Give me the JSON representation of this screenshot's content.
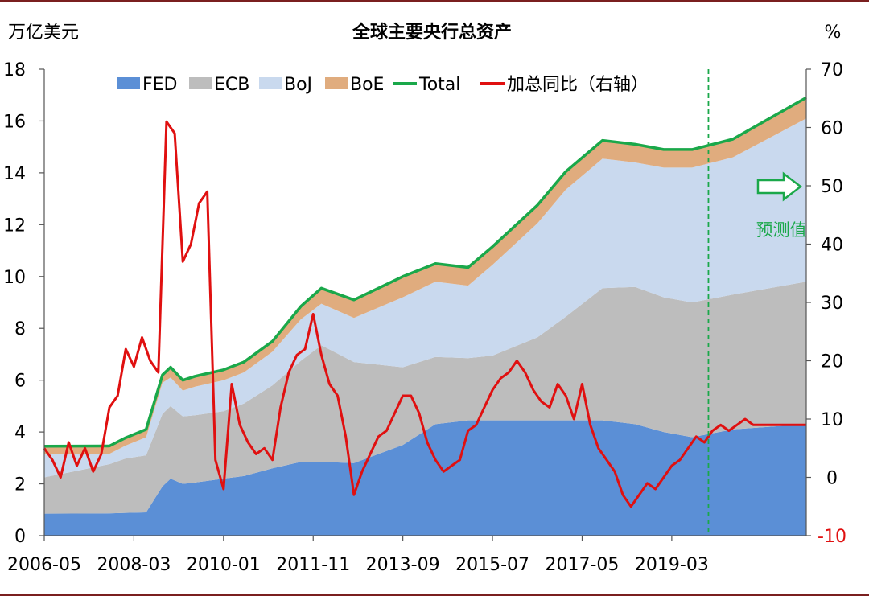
{
  "chart_data": {
    "type": "area",
    "title": "全球主要央行总资产",
    "ylabel_left": "万亿美元",
    "ylabel_right": "%",
    "ylim_left": [
      0,
      18
    ],
    "ylim_right": [
      -10,
      70
    ],
    "yticks_left": [
      "0",
      "2",
      "4",
      "6",
      "8",
      "10",
      "12",
      "14",
      "16",
      "18"
    ],
    "yticks_right": [
      "-10",
      "0",
      "10",
      "20",
      "30",
      "40",
      "50",
      "60",
      "70"
    ],
    "xticks": [
      "2006-05",
      "2008-03",
      "2010-01",
      "2011-11",
      "2013-09",
      "2015-07",
      "2017-05",
      "2019-03"
    ],
    "x_start": "2006-05",
    "x_end": "2021-12",
    "forecast_start": "2019-12",
    "forecast_label": "预测值",
    "legend": [
      "FED",
      "ECB",
      "BoJ",
      "BoE",
      "Total",
      "加总同比（右轴）"
    ],
    "colors": {
      "FED": "#5b8fd6",
      "ECB": "#bdbdbd",
      "BoJ": "#c9d9ee",
      "BoE": "#e0ac7e",
      "Total": "#1aa84a",
      "YoY": "#e01010",
      "forecast": "#1aa84a"
    },
    "x_points": [
      "2006-05",
      "2007-09",
      "2008-01",
      "2008-06",
      "2008-10",
      "2008-12",
      "2009-03",
      "2009-06",
      "2010-01",
      "2010-06",
      "2011-01",
      "2011-08",
      "2012-01",
      "2012-09",
      "2013-09",
      "2014-05",
      "2015-01",
      "2015-07",
      "2016-06",
      "2017-01",
      "2017-10",
      "2018-06",
      "2019-01",
      "2019-08",
      "2020-06",
      "2021-12"
    ],
    "series": [
      {
        "name": "FED",
        "values": [
          0.85,
          0.86,
          0.88,
          0.9,
          1.9,
          2.2,
          2.0,
          2.05,
          2.2,
          2.3,
          2.6,
          2.85,
          2.85,
          2.8,
          3.5,
          4.3,
          4.45,
          4.45,
          4.45,
          4.45,
          4.45,
          4.3,
          4.0,
          3.8,
          4.1,
          4.3
        ]
      },
      {
        "name": "ECB",
        "values": [
          1.4,
          1.9,
          2.1,
          2.2,
          2.8,
          2.8,
          2.6,
          2.6,
          2.6,
          2.8,
          3.2,
          3.9,
          4.5,
          3.9,
          3.0,
          2.6,
          2.4,
          2.5,
          3.2,
          4.0,
          5.1,
          5.3,
          5.2,
          5.2,
          5.2,
          5.5
        ]
      },
      {
        "name": "BoJ",
        "values": [
          0.9,
          0.4,
          0.5,
          0.7,
          1.2,
          1.1,
          1.0,
          1.1,
          1.2,
          1.2,
          1.3,
          1.6,
          1.6,
          1.7,
          2.7,
          2.9,
          2.8,
          3.5,
          4.4,
          4.9,
          5.0,
          4.8,
          5.0,
          5.2,
          5.3,
          6.3
        ]
      },
      {
        "name": "BoE",
        "values": [
          0.3,
          0.3,
          0.3,
          0.3,
          0.3,
          0.4,
          0.4,
          0.4,
          0.4,
          0.4,
          0.4,
          0.5,
          0.6,
          0.7,
          0.8,
          0.7,
          0.7,
          0.7,
          0.7,
          0.7,
          0.7,
          0.7,
          0.7,
          0.7,
          0.7,
          0.8
        ]
      }
    ],
    "yoy": {
      "name": "加总同比（右轴）",
      "x": [
        "2006-05",
        "2006-07",
        "2006-09",
        "2006-11",
        "2007-01",
        "2007-03",
        "2007-05",
        "2007-07",
        "2007-09",
        "2007-11",
        "2008-01",
        "2008-03",
        "2008-05",
        "2008-07",
        "2008-09",
        "2008-11",
        "2009-01",
        "2009-03",
        "2009-05",
        "2009-07",
        "2009-09",
        "2009-11",
        "2010-01",
        "2010-03",
        "2010-05",
        "2010-07",
        "2010-09",
        "2010-11",
        "2011-01",
        "2011-03",
        "2011-05",
        "2011-07",
        "2011-09",
        "2011-11",
        "2012-01",
        "2012-03",
        "2012-05",
        "2012-07",
        "2012-09",
        "2012-11",
        "2013-01",
        "2013-03",
        "2013-05",
        "2013-07",
        "2013-09",
        "2013-11",
        "2014-01",
        "2014-03",
        "2014-05",
        "2014-07",
        "2014-09",
        "2014-11",
        "2015-01",
        "2015-03",
        "2015-05",
        "2015-07",
        "2015-09",
        "2015-11",
        "2016-01",
        "2016-03",
        "2016-05",
        "2016-07",
        "2016-09",
        "2016-11",
        "2017-01",
        "2017-03",
        "2017-05",
        "2017-07",
        "2017-09",
        "2017-11",
        "2018-01",
        "2018-03",
        "2018-05",
        "2018-07",
        "2018-09",
        "2018-11",
        "2019-01",
        "2019-03",
        "2019-05",
        "2019-07",
        "2019-09",
        "2019-11",
        "2020-01",
        "2020-03",
        "2020-05",
        "2020-07",
        "2020-09",
        "2020-11",
        "2021-01",
        "2021-03",
        "2021-05",
        "2021-07",
        "2021-09",
        "2021-11",
        "2021-12"
      ],
      "values": [
        5,
        3,
        0,
        6,
        2,
        5,
        1,
        4,
        12,
        14,
        22,
        19,
        24,
        20,
        18,
        61,
        59,
        37,
        40,
        47,
        49,
        3,
        -2,
        16,
        9,
        6,
        4,
        5,
        3,
        12,
        18,
        21,
        22,
        28,
        21,
        16,
        14,
        7,
        -3,
        1,
        4,
        7,
        8,
        11,
        14,
        14,
        11,
        6,
        3,
        1,
        2,
        3,
        8,
        9,
        12,
        15,
        17,
        18,
        20,
        18,
        15,
        13,
        12,
        16,
        14,
        10,
        16,
        9,
        5,
        3,
        1,
        -3,
        -5,
        -3,
        -1,
        -2,
        0,
        2,
        3,
        5,
        7,
        6,
        8,
        9,
        8,
        9,
        10,
        9,
        9,
        9,
        9,
        9,
        9,
        9,
        9
      ]
    }
  }
}
